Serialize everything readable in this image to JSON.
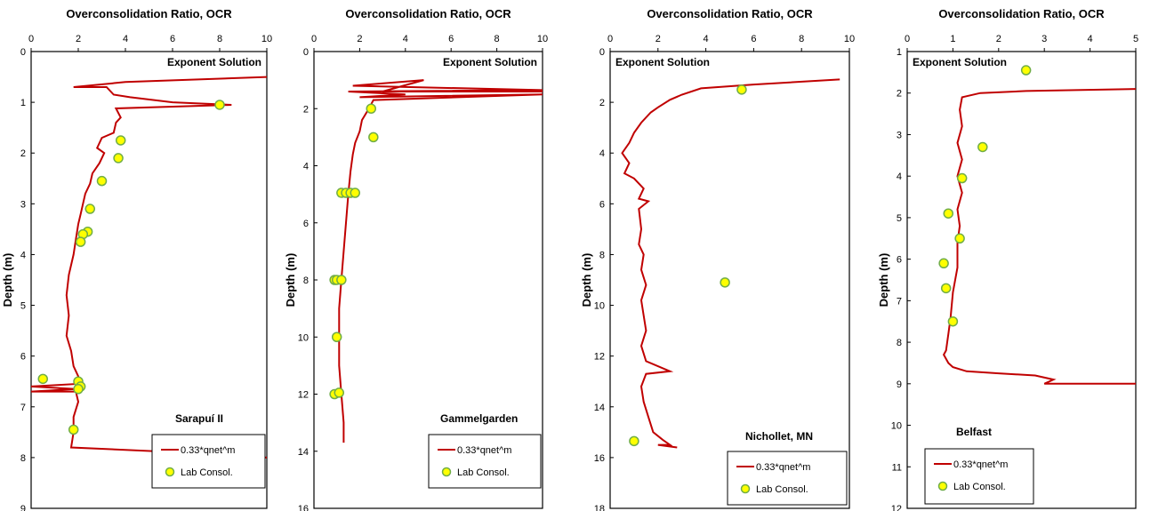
{
  "chart_data": [
    {
      "type": "line",
      "title": "Overconsolidation Ratio, OCR",
      "ylabel": "Depth (m)",
      "xlim": [
        0,
        10
      ],
      "xticks": [
        0,
        2,
        4,
        6,
        8,
        10
      ],
      "ylim": [
        0,
        9
      ],
      "yticks": [
        0,
        1,
        2,
        3,
        4,
        5,
        6,
        7,
        8,
        9
      ],
      "y_inverted": true,
      "annotation_top": "Exponent Solution",
      "site_label": "Sarapuí II",
      "legend": {
        "line": "0.33*qnet^m",
        "points": "Lab Consol."
      },
      "line_color": "#c00000",
      "point_color": "#ffff00",
      "series": [
        {
          "name": "0.33*qnet^m",
          "kind": "line",
          "points": [
            [
              10,
              0.5
            ],
            [
              4,
              0.6
            ],
            [
              1.8,
              0.7
            ],
            [
              3.2,
              0.7
            ],
            [
              3.5,
              0.85
            ],
            [
              4.2,
              0.9
            ],
            [
              6,
              1.0
            ],
            [
              8.5,
              1.05
            ],
            [
              3.6,
              1.12
            ],
            [
              3.8,
              1.3
            ],
            [
              3.6,
              1.4
            ],
            [
              3.5,
              1.6
            ],
            [
              3.0,
              1.7
            ],
            [
              2.8,
              1.9
            ],
            [
              3.1,
              2.0
            ],
            [
              2.9,
              2.2
            ],
            [
              2.6,
              2.4
            ],
            [
              2.5,
              2.6
            ],
            [
              2.3,
              2.8
            ],
            [
              2.2,
              3.0
            ],
            [
              2.1,
              3.2
            ],
            [
              2.0,
              3.4
            ],
            [
              1.9,
              3.7
            ],
            [
              1.8,
              4.0
            ],
            [
              1.6,
              4.4
            ],
            [
              1.5,
              4.8
            ],
            [
              1.6,
              5.2
            ],
            [
              1.5,
              5.6
            ],
            [
              1.7,
              5.9
            ],
            [
              1.8,
              6.2
            ],
            [
              2.0,
              6.4
            ],
            [
              1.9,
              6.55
            ],
            [
              0,
              6.6
            ],
            [
              1.9,
              6.65
            ],
            [
              0,
              6.7
            ],
            [
              1.9,
              6.7
            ],
            [
              2.0,
              6.9
            ],
            [
              1.8,
              7.2
            ],
            [
              1.8,
              7.5
            ],
            [
              1.7,
              7.8
            ],
            [
              6.5,
              7.9
            ],
            [
              10,
              8.0
            ]
          ]
        },
        {
          "name": "Lab Consol.",
          "kind": "scatter",
          "points": [
            [
              8,
              1.05
            ],
            [
              3.8,
              1.75
            ],
            [
              3.7,
              2.1
            ],
            [
              3.0,
              2.55
            ],
            [
              2.5,
              3.1
            ],
            [
              2.4,
              3.55
            ],
            [
              2.2,
              3.6
            ],
            [
              2.1,
              3.75
            ],
            [
              0.5,
              6.45
            ],
            [
              2.0,
              6.5
            ],
            [
              2.1,
              6.6
            ],
            [
              2.0,
              6.65
            ],
            [
              1.8,
              7.45
            ]
          ]
        }
      ]
    },
    {
      "type": "line",
      "title": "Overconsolidation Ratio, OCR",
      "ylabel": "Depth (m)",
      "xlim": [
        0,
        10
      ],
      "xticks": [
        0,
        2,
        4,
        6,
        8,
        10
      ],
      "ylim": [
        0,
        16
      ],
      "yticks": [
        0,
        2,
        4,
        6,
        8,
        10,
        12,
        14,
        16
      ],
      "y_inverted": true,
      "annotation_top": "Exponent Solution",
      "site_label": "Gammelgarden",
      "legend": {
        "line": "0.33*qnet^m",
        "points": "Lab Consol."
      },
      "line_color": "#c00000",
      "point_color": "#ffff00",
      "series": [
        {
          "name": "0.33*qnet^m",
          "kind": "line",
          "points": [
            [
              10,
              1.4
            ],
            [
              3.0,
              1.4
            ],
            [
              4.8,
              1.0
            ],
            [
              1.7,
              1.2
            ],
            [
              10,
              1.35
            ],
            [
              1.5,
              1.4
            ],
            [
              4.0,
              1.5
            ],
            [
              2.0,
              1.6
            ],
            [
              10,
              1.5
            ],
            [
              2.6,
              1.7
            ],
            [
              2.4,
              2.0
            ],
            [
              2.1,
              2.4
            ],
            [
              2.0,
              2.8
            ],
            [
              1.8,
              3.2
            ],
            [
              1.7,
              3.6
            ],
            [
              1.6,
              4.2
            ],
            [
              1.5,
              5.0
            ],
            [
              1.4,
              6.0
            ],
            [
              1.3,
              7.0
            ],
            [
              1.2,
              8.0
            ],
            [
              1.1,
              9.0
            ],
            [
              1.1,
              10.0
            ],
            [
              1.1,
              11.0
            ],
            [
              1.2,
              12.0
            ],
            [
              1.3,
              13.0
            ],
            [
              1.3,
              13.7
            ]
          ]
        },
        {
          "name": "Lab Consol.",
          "kind": "scatter",
          "points": [
            [
              2.5,
              2.0
            ],
            [
              2.6,
              3.0
            ],
            [
              1.2,
              4.95
            ],
            [
              1.4,
              4.95
            ],
            [
              1.6,
              4.95
            ],
            [
              1.8,
              4.95
            ],
            [
              0.9,
              8.0
            ],
            [
              1.0,
              8.0
            ],
            [
              1.2,
              8.0
            ],
            [
              1.0,
              10.0
            ],
            [
              0.9,
              12.0
            ],
            [
              1.1,
              11.95
            ]
          ]
        }
      ]
    },
    {
      "type": "line",
      "title": "Overconsolidation Ratio, OCR",
      "ylabel": "Depth (m)",
      "xlim": [
        0,
        10
      ],
      "xticks": [
        0,
        2,
        4,
        6,
        8,
        10
      ],
      "ylim": [
        0,
        18
      ],
      "yticks": [
        0,
        2,
        4,
        6,
        8,
        10,
        12,
        14,
        16,
        18
      ],
      "y_inverted": true,
      "annotation_top": "Exponent Solution",
      "site_label": "Nichollet, MN",
      "legend": {
        "line": "0.33*qnet^m",
        "points": "Lab Consol."
      },
      "line_color": "#c00000",
      "point_color": "#ffff00",
      "series": [
        {
          "name": "0.33*qnet^m",
          "kind": "line",
          "points": [
            [
              9.6,
              1.1
            ],
            [
              6.0,
              1.3
            ],
            [
              3.8,
              1.45
            ],
            [
              3.0,
              1.7
            ],
            [
              2.5,
              1.9
            ],
            [
              2.0,
              2.2
            ],
            [
              1.7,
              2.4
            ],
            [
              1.3,
              2.8
            ],
            [
              1.0,
              3.2
            ],
            [
              0.8,
              3.6
            ],
            [
              0.5,
              4.0
            ],
            [
              0.8,
              4.4
            ],
            [
              0.6,
              4.8
            ],
            [
              1.0,
              5.0
            ],
            [
              1.4,
              5.4
            ],
            [
              1.2,
              5.8
            ],
            [
              1.6,
              5.9
            ],
            [
              1.2,
              6.2
            ],
            [
              1.3,
              7.0
            ],
            [
              1.2,
              7.6
            ],
            [
              1.4,
              8.0
            ],
            [
              1.3,
              8.6
            ],
            [
              1.5,
              9.2
            ],
            [
              1.3,
              9.8
            ],
            [
              1.4,
              10.4
            ],
            [
              1.5,
              11.0
            ],
            [
              1.3,
              11.6
            ],
            [
              1.5,
              12.2
            ],
            [
              2.5,
              12.6
            ],
            [
              1.5,
              12.7
            ],
            [
              1.3,
              13.2
            ],
            [
              1.4,
              13.8
            ],
            [
              1.6,
              14.4
            ],
            [
              1.8,
              15.0
            ],
            [
              2.2,
              15.3
            ],
            [
              2.5,
              15.5
            ],
            [
              2.0,
              15.5
            ],
            [
              2.8,
              15.6
            ]
          ]
        },
        {
          "name": "Lab Consol.",
          "kind": "scatter",
          "points": [
            [
              5.5,
              1.5
            ],
            [
              4.8,
              9.1
            ],
            [
              1.0,
              15.35
            ]
          ]
        }
      ]
    },
    {
      "type": "line",
      "title": "Overconsolidation Ratio, OCR",
      "ylabel": "Depth (m)",
      "xlim": [
        0,
        5
      ],
      "xticks": [
        0,
        1,
        2,
        3,
        4,
        5
      ],
      "ylim": [
        1,
        12
      ],
      "yticks": [
        1,
        2,
        3,
        4,
        5,
        6,
        7,
        8,
        9,
        10,
        11,
        12
      ],
      "y_inverted": true,
      "annotation_top": "Exponent Solution",
      "site_label": "Belfast",
      "legend": {
        "line": "0.33*qnet^m",
        "points": "Lab Consol."
      },
      "line_color": "#c00000",
      "point_color": "#ffff00",
      "series": [
        {
          "name": "0.33*qnet^m",
          "kind": "line",
          "points": [
            [
              5,
              1.9
            ],
            [
              2.6,
              1.95
            ],
            [
              1.6,
              2.0
            ],
            [
              1.2,
              2.1
            ],
            [
              1.15,
              2.4
            ],
            [
              1.2,
              2.8
            ],
            [
              1.1,
              3.2
            ],
            [
              1.2,
              3.6
            ],
            [
              1.1,
              4.0
            ],
            [
              1.2,
              4.4
            ],
            [
              1.1,
              4.8
            ],
            [
              1.15,
              5.2
            ],
            [
              1.1,
              5.6
            ],
            [
              1.1,
              6.2
            ],
            [
              1.0,
              6.8
            ],
            [
              0.95,
              7.4
            ],
            [
              0.9,
              7.8
            ],
            [
              0.85,
              8.2
            ],
            [
              0.8,
              8.3
            ],
            [
              0.9,
              8.5
            ],
            [
              1.0,
              8.6
            ],
            [
              1.3,
              8.7
            ],
            [
              2.0,
              8.75
            ],
            [
              2.8,
              8.8
            ],
            [
              3.2,
              8.9
            ],
            [
              3.0,
              9.0
            ],
            [
              5,
              9.0
            ]
          ]
        },
        {
          "name": "Lab Consol.",
          "kind": "scatter",
          "points": [
            [
              2.6,
              1.45
            ],
            [
              1.65,
              3.3
            ],
            [
              1.2,
              4.05
            ],
            [
              0.9,
              4.9
            ],
            [
              1.15,
              5.5
            ],
            [
              0.8,
              6.1
            ],
            [
              0.85,
              6.7
            ],
            [
              1.0,
              7.5
            ]
          ]
        }
      ]
    }
  ]
}
